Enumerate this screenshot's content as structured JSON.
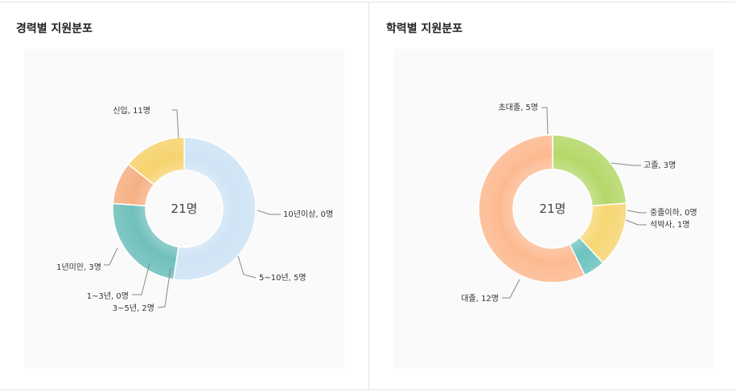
{
  "chart_data": [
    {
      "type": "donut",
      "title": "경력별 지원분포",
      "center_label": "21명",
      "categories": [
        "신입",
        "10년이상",
        "5~10년",
        "3~5년",
        "1~3년",
        "1년미만"
      ],
      "values": [
        11,
        0,
        5,
        2,
        0,
        3
      ],
      "labels": [
        "신입, 11명",
        "10년이상, 0명",
        "5~10년, 5명",
        "3~5년, 2명",
        "1~3년, 0명",
        "1년미만, 3명"
      ],
      "colors": [
        "#cfe4f6",
        "#2f8f8c",
        "#6fc0bc",
        "#f6b083",
        "#f6b083",
        "#f7d36e"
      ],
      "legend": "none"
    },
    {
      "type": "donut",
      "title": "학력별 지원분포",
      "center_label": "21명",
      "categories": [
        "초대졸",
        "고졸",
        "중졸이하",
        "석박사",
        "대졸"
      ],
      "values": [
        5,
        3,
        0,
        1,
        12
      ],
      "labels": [
        "초대졸, 5명",
        "고졸, 3명",
        "중졸이하, 0명",
        "석박사, 1명",
        "대졸, 12명"
      ],
      "colors": [
        "#b5d86a",
        "#f7d774",
        "#2f8f8c",
        "#6cc3c0",
        "#fdba91"
      ],
      "legend": "none"
    }
  ]
}
